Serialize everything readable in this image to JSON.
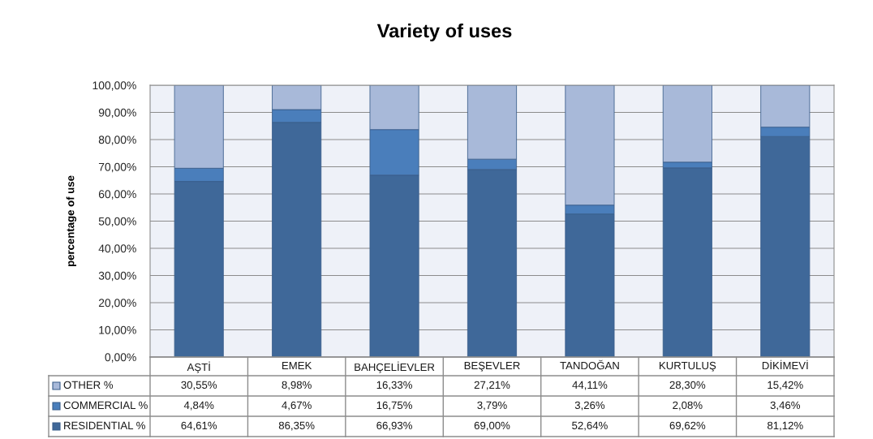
{
  "chart_data": {
    "type": "bar",
    "title": "Variety of uses",
    "ylabel": "percentage of use",
    "categories": [
      "AŞTİ",
      "EMEK",
      "BAHÇELİEVLER",
      "BEŞEVLER",
      "TANDOĞAN",
      "KURTULUŞ",
      "DİKİMEVİ"
    ],
    "stacked": true,
    "series": [
      {
        "name": "RESIDENTIAL %",
        "color": "#3f6899",
        "values": [
          64.61,
          86.35,
          66.93,
          69.0,
          52.64,
          69.62,
          81.12
        ],
        "value_labels": [
          "64,61%",
          "86,35%",
          "66,93%",
          "69,00%",
          "52,64%",
          "69,62%",
          "81,12%"
        ]
      },
      {
        "name": "COMMERCIAL %",
        "color": "#4a7ebb",
        "values": [
          4.84,
          4.67,
          16.75,
          3.79,
          3.26,
          2.08,
          3.46
        ],
        "value_labels": [
          "4,84%",
          "4,67%",
          "16,75%",
          "3,79%",
          "3,26%",
          "2,08%",
          "3,46%"
        ]
      },
      {
        "name": "OTHER %",
        "color": "#a8b9d9",
        "values": [
          30.55,
          8.98,
          16.33,
          27.21,
          44.11,
          28.3,
          15.42
        ],
        "value_labels": [
          "30,55%",
          "8,98%",
          "16,33%",
          "27,21%",
          "44,11%",
          "28,30%",
          "15,42%"
        ]
      }
    ],
    "ylim": [
      0,
      100
    ],
    "yticks": [
      {
        "value": 0,
        "label": "0,00%"
      },
      {
        "value": 10,
        "label": "10,00%"
      },
      {
        "value": 20,
        "label": "20,00%"
      },
      {
        "value": 30,
        "label": "30,00%"
      },
      {
        "value": 40,
        "label": "40,00%"
      },
      {
        "value": 50,
        "label": "50,00%"
      },
      {
        "value": 60,
        "label": "60,00%"
      },
      {
        "value": 70,
        "label": "70,00%"
      },
      {
        "value": 80,
        "label": "80,00%"
      },
      {
        "value": 90,
        "label": "90,00%"
      },
      {
        "value": 100,
        "label": "100,00%"
      }
    ],
    "grid": "y",
    "legend": "bottom left"
  }
}
